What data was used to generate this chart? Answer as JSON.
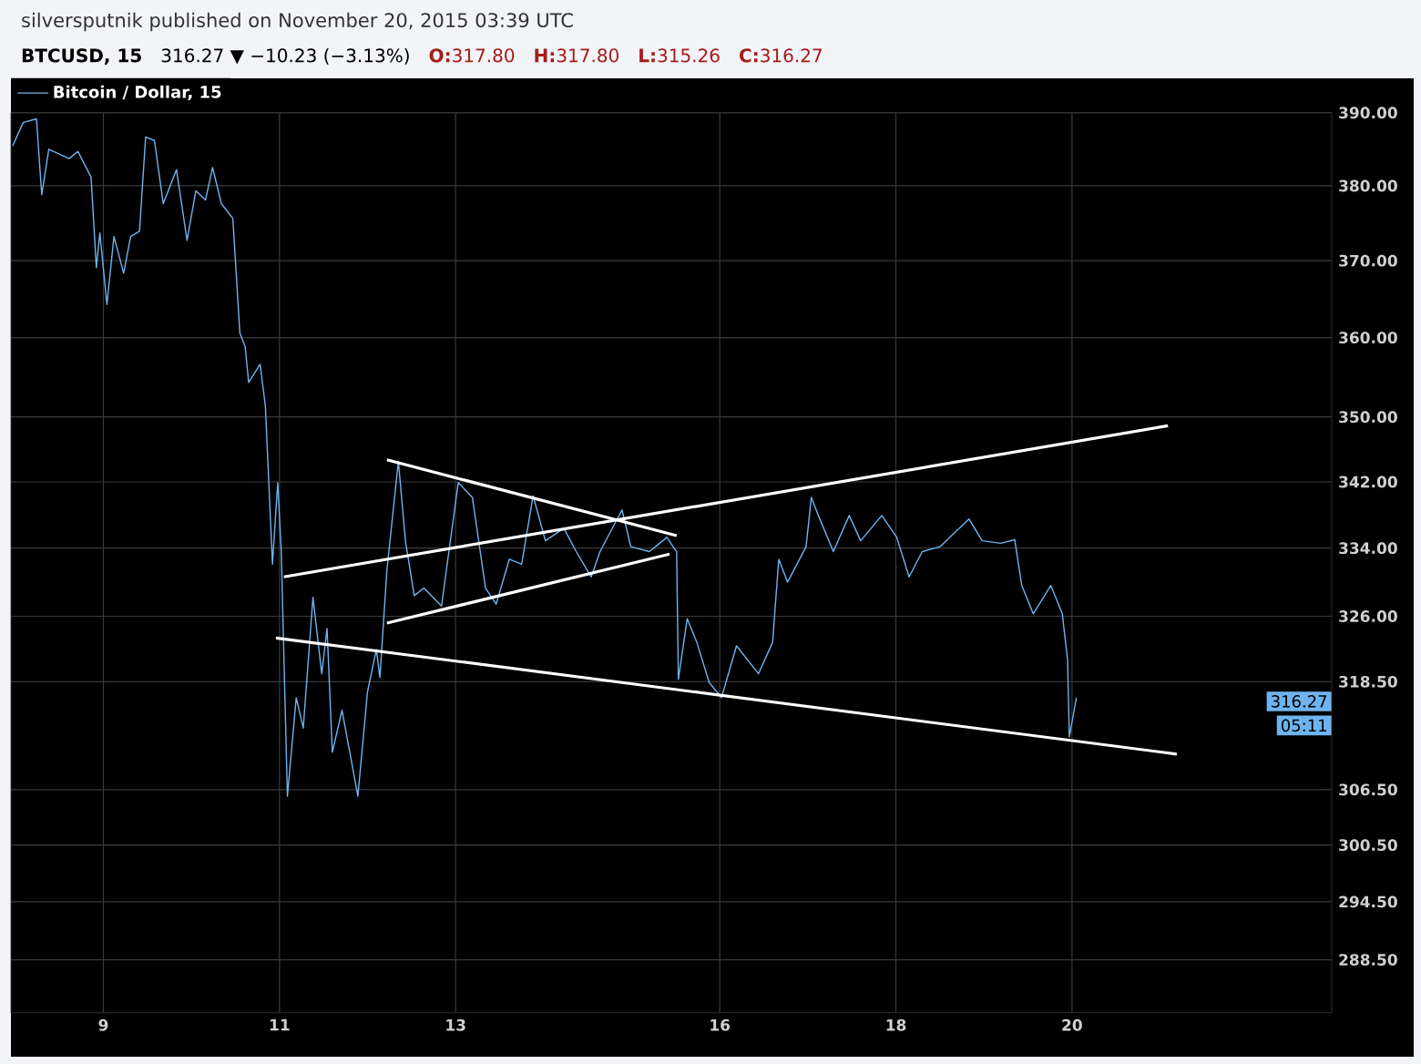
{
  "chart_data": {
    "type": "line",
    "title": "BTCUSD, 15",
    "subtitle": "316.27 ▼ −10.23 (−3.13%)",
    "annotations": [
      "silversputnik published on November 20, 2015 03:39 UTC",
      "**O:**317.80",
      "**H:**317.80",
      "**L:**315.26",
      "**C:**316.27",
      {
        "text": "316.27",
        "y": 316.27
      },
      "05:11"
    ],
    "xlim": [
      7.95,
      22.95
    ],
    "xticks": [
      9,
      11,
      13,
      16,
      18,
      20
    ],
    "ylim": [
      283.1,
      390
    ],
    "yticks": [
      {
        "value": 390,
        "label": "390.00"
      },
      {
        "value": 380,
        "label": "380.00"
      },
      {
        "value": 370,
        "label": "370.00"
      },
      {
        "value": 360,
        "label": "360.00"
      },
      {
        "value": 350,
        "label": "350.00"
      },
      {
        "value": 342,
        "label": "342.00"
      },
      {
        "value": 334,
        "label": "334.00"
      },
      {
        "value": 326,
        "label": "326.00"
      },
      {
        "value": 318.5,
        "label": "318.50"
      },
      {
        "value": 306.5,
        "label": "306.50"
      },
      {
        "value": 300.5,
        "label": "300.50"
      },
      {
        "value": 294.5,
        "label": "294.50"
      },
      {
        "value": 288.5,
        "label": "288.50"
      }
    ],
    "log": "y",
    "grid": true,
    "legend": "top left",
    "marker": "none",
    "line_style": "solid",
    "series": [
      {
        "name": "Bitcoin / Dollar, 15",
        "color": "#6fb3ee",
        "x": [
          7.97,
          8.09,
          8.24,
          8.3,
          8.38,
          8.61,
          8.71,
          8.86,
          8.92,
          8.96,
          9.04,
          9.12,
          9.23,
          9.31,
          9.41,
          9.48,
          9.58,
          9.68,
          9.83,
          9.95,
          10.05,
          10.16,
          10.24,
          10.34,
          10.47,
          10.55,
          10.61,
          10.65,
          10.78,
          10.84,
          10.92,
          10.98,
          11.02,
          11.09,
          11.19,
          11.27,
          11.38,
          11.48,
          11.54,
          11.6,
          11.71,
          11.89,
          12.0,
          12.1,
          12.14,
          12.22,
          12.35,
          12.43,
          12.53,
          12.64,
          12.84,
          13.03,
          13.19,
          13.34,
          13.46,
          13.61,
          13.75,
          13.88,
          14.02,
          14.23,
          14.37,
          14.54,
          14.64,
          14.89,
          14.99,
          15.2,
          15.4,
          15.47,
          15.51,
          15.53,
          15.63,
          15.74,
          15.88,
          16.02,
          16.19,
          16.44,
          16.6,
          16.67,
          16.77,
          16.98,
          17.04,
          17.12,
          17.29,
          17.47,
          17.6,
          17.84,
          18.01,
          18.15,
          18.3,
          18.5,
          18.83,
          18.98,
          19.19,
          19.35,
          19.43,
          19.56,
          19.76,
          19.89,
          19.95,
          19.97,
          20.05
        ],
        "values": [
          385.5,
          388.7,
          389.2,
          378.8,
          385.0,
          383.7,
          384.7,
          381.2,
          369.1,
          373.7,
          364.3,
          373.2,
          368.4,
          373.2,
          373.9,
          386.7,
          386.2,
          377.6,
          382.2,
          372.7,
          379.3,
          378.1,
          382.5,
          377.6,
          375.6,
          360.6,
          358.9,
          354.3,
          356.6,
          351.3,
          332.1,
          341.9,
          333.6,
          305.8,
          316.7,
          313.3,
          328.2,
          319.4,
          324.6,
          310.6,
          315.3,
          305.8,
          317.4,
          322.2,
          319.0,
          331.4,
          344.5,
          334.9,
          328.4,
          329.3,
          327.2,
          341.9,
          340.1,
          329.3,
          327.4,
          332.7,
          332.1,
          340.3,
          334.9,
          336.4,
          333.6,
          330.6,
          333.6,
          338.6,
          334.2,
          333.6,
          335.3,
          334.2,
          333.6,
          318.8,
          325.7,
          323.0,
          318.4,
          316.7,
          322.6,
          319.4,
          323.0,
          332.7,
          330.0,
          334.2,
          340.1,
          337.9,
          333.6,
          337.9,
          334.9,
          337.9,
          335.3,
          330.6,
          333.6,
          334.2,
          337.5,
          334.9,
          334.6,
          335.0,
          329.6,
          326.3,
          329.6,
          326.3,
          321.0,
          312.3,
          316.7
        ]
      },
      {
        "color": "#ffffff",
        "x": [
          11.05,
          21.09
        ],
        "values": [
          330.6,
          348.9
        ]
      },
      {
        "color": "#ffffff",
        "x": [
          10.96,
          21.19
        ],
        "values": [
          323.5,
          310.4
        ]
      },
      {
        "color": "#ffffff",
        "x": [
          12.22,
          15.51
        ],
        "values": [
          344.7,
          335.5
        ]
      },
      {
        "color": "#ffffff",
        "x": [
          12.22,
          15.43
        ],
        "values": [
          325.2,
          333.3
        ]
      }
    ]
  }
}
